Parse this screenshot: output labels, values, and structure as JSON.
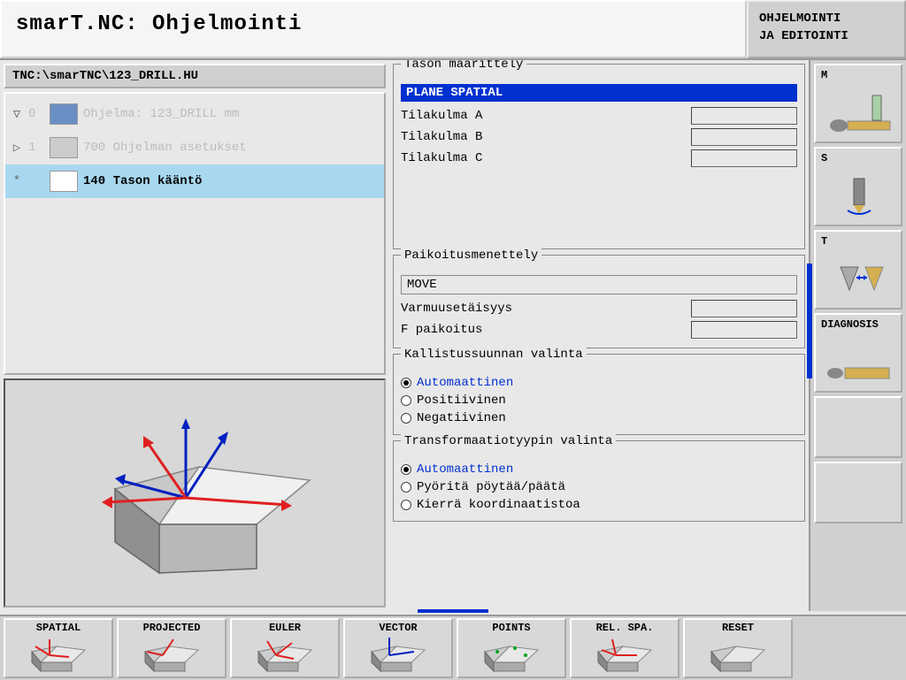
{
  "header": {
    "title": "smarT.NC: Ohjelmointi",
    "mode_line1": "OHJELMOINTI",
    "mode_line2": "JA EDITOINTI"
  },
  "path": "TNC:\\smarTNC\\123_DRILL.HU",
  "tree": {
    "items": [
      {
        "expand": "▽",
        "num": "0",
        "label": "Ohjelma: 123_DRILL mm",
        "selected": false,
        "icon_bg": "#6a8fc4"
      },
      {
        "expand": "▷",
        "num": "1",
        "label": "700 Ohjelman asetukset",
        "selected": false,
        "icon_bg": "#cccccc"
      },
      {
        "expand": "*",
        "num": "",
        "label": "140 Tason kääntö",
        "selected": true,
        "icon_bg": "#ffffff"
      }
    ]
  },
  "plane_def": {
    "title": "Tason määrittely",
    "highlight": "PLANE SPATIAL",
    "rows": [
      {
        "label": "Tilakulma A"
      },
      {
        "label": "Tilakulma B"
      },
      {
        "label": "Tilakulma C"
      }
    ]
  },
  "positioning": {
    "title": "Paikoitusmenettely",
    "mode": "MOVE",
    "rows": [
      {
        "label": "Varmuusetäisyys"
      },
      {
        "label": "F paikoitus"
      }
    ]
  },
  "tilt_dir": {
    "title": "Kallistussuunnan valinta",
    "options": [
      {
        "label": "Automaattinen",
        "checked": true,
        "auto": true
      },
      {
        "label": "Positiivinen",
        "checked": false,
        "auto": false
      },
      {
        "label": "Negatiivinen",
        "checked": false,
        "auto": false
      }
    ]
  },
  "transform": {
    "title": "Transformaatiotyypin valinta",
    "options": [
      {
        "label": "Automaattinen",
        "checked": true,
        "auto": true
      },
      {
        "label": "Pyöritä pöytää/päätä",
        "checked": false,
        "auto": false
      },
      {
        "label": "Kierrä koordinaatistoa",
        "checked": false,
        "auto": false
      }
    ]
  },
  "side_buttons": [
    {
      "label": "M"
    },
    {
      "label": "S"
    },
    {
      "label": "T"
    },
    {
      "label": "DIAGNOSIS"
    },
    {
      "label": ""
    },
    {
      "label": ""
    }
  ],
  "bottom_buttons": [
    {
      "label": "SPATIAL"
    },
    {
      "label": "PROJECTED"
    },
    {
      "label": "EULER"
    },
    {
      "label": "VECTOR"
    },
    {
      "label": "POINTS"
    },
    {
      "label": "REL. SPA."
    },
    {
      "label": "RESET"
    }
  ],
  "colors": {
    "accent": "#0030d0",
    "selection": "#a8d8f0",
    "gold": "#d4b050"
  }
}
